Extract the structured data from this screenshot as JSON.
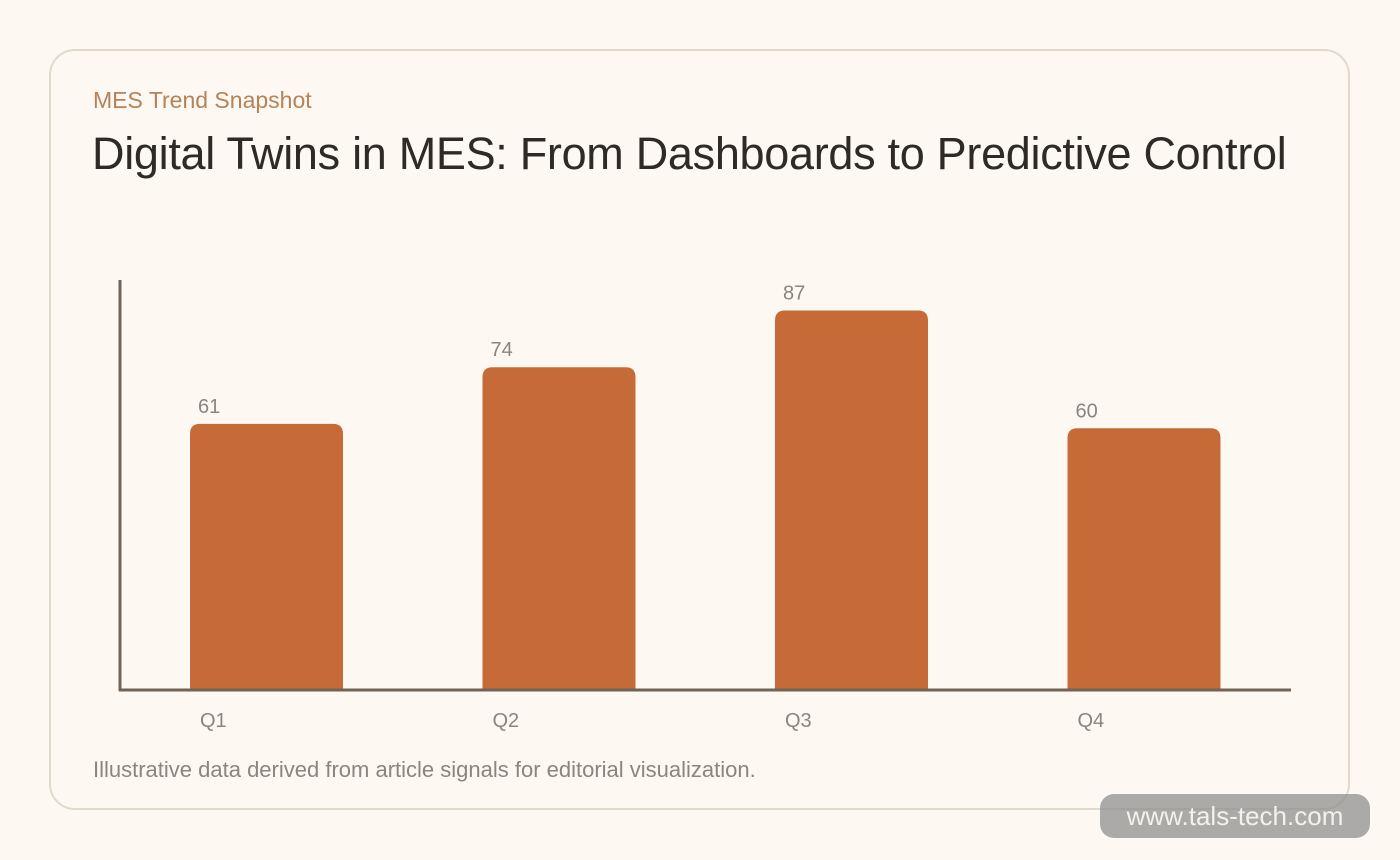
{
  "card": {
    "eyebrow": "MES Trend Snapshot",
    "title": "Digital Twins in MES: From Dashboards to Predictive Control",
    "footnote": "Illustrative data derived from article signals for editorial visualization."
  },
  "watermark": "www.tals-tech.com",
  "colors": {
    "bar": "#c66b38",
    "axis": "#6f6457",
    "label": "#8d857c",
    "background": "#fdf8f1"
  },
  "chart_data": {
    "type": "bar",
    "categories": [
      "Q1",
      "Q2",
      "Q3",
      "Q4"
    ],
    "values": [
      61,
      74,
      87,
      60
    ],
    "title": "Digital Twins in MES: From Dashboards to Predictive Control",
    "xlabel": "",
    "ylabel": "",
    "ylim": [
      0,
      94
    ],
    "grid": false,
    "data_labels": true
  }
}
